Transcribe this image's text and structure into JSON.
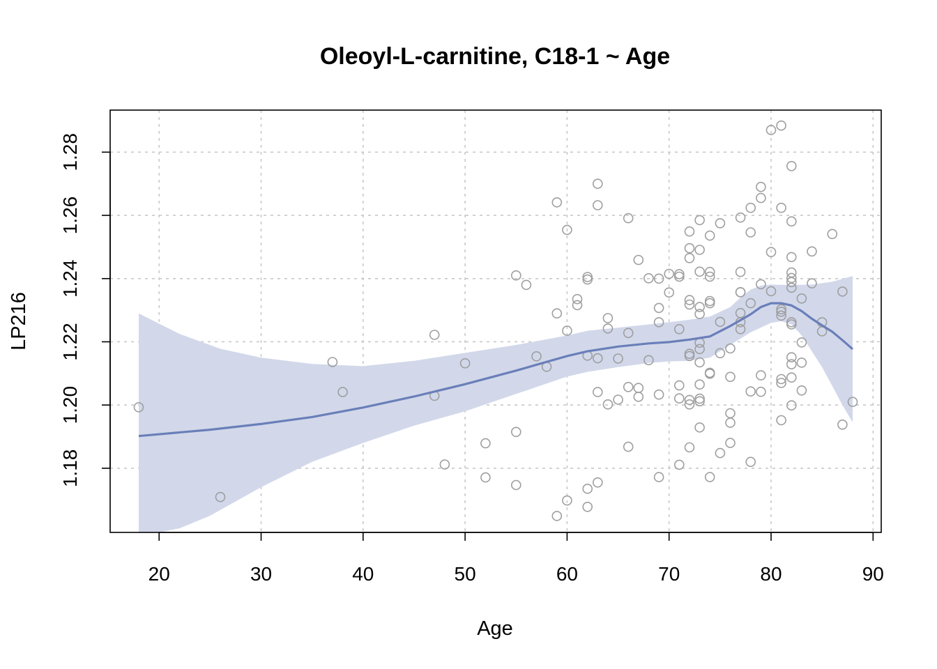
{
  "chart_data": {
    "type": "scatter",
    "title": "Oleoyl-L-carnitine, C18-1 ~ Age",
    "xlabel": "Age",
    "ylabel": "LP216",
    "xlim": [
      15.2,
      90.8
    ],
    "ylim": [
      1.1597,
      1.2933
    ],
    "xticks": [
      20,
      30,
      40,
      50,
      60,
      70,
      80,
      90
    ],
    "yticks": [
      1.18,
      1.2,
      1.22,
      1.24,
      1.26,
      1.28
    ],
    "ytick_labels": [
      "1.18",
      "1.20",
      "1.22",
      "1.24",
      "1.26",
      "1.28"
    ],
    "grid": true,
    "colors": {
      "points": "#9e9e9e",
      "smooth_line": "#6a7fb9",
      "confidence_band": "#d2d8ea",
      "grid": "#c8c8c8"
    },
    "points": [
      [
        18,
        1.1993
      ],
      [
        26,
        1.1709
      ],
      [
        37,
        1.2136
      ],
      [
        38,
        1.2041
      ],
      [
        47,
        1.2222
      ],
      [
        47,
        1.2029
      ],
      [
        48,
        1.1812
      ],
      [
        50,
        1.2132
      ],
      [
        52,
        1.1879
      ],
      [
        52,
        1.1771
      ],
      [
        55,
        1.241
      ],
      [
        55,
        1.1915
      ],
      [
        55,
        1.1747
      ],
      [
        56,
        1.238
      ],
      [
        57,
        1.2154
      ],
      [
        58,
        1.2121
      ],
      [
        59,
        1.2641
      ],
      [
        59,
        1.229
      ],
      [
        59,
        1.1649
      ],
      [
        60,
        1.2554
      ],
      [
        60,
        1.2235
      ],
      [
        60,
        1.1698
      ],
      [
        61,
        1.2335
      ],
      [
        61,
        1.2316
      ],
      [
        62,
        1.2405
      ],
      [
        62,
        1.2397
      ],
      [
        62,
        1.2156
      ],
      [
        62,
        1.1735
      ],
      [
        62,
        1.1678
      ],
      [
        63,
        1.27
      ],
      [
        63,
        1.2632
      ],
      [
        63,
        1.2148
      ],
      [
        63,
        1.2041
      ],
      [
        63,
        1.1755
      ],
      [
        64,
        1.2275
      ],
      [
        64,
        1.2242
      ],
      [
        64,
        1.2002
      ],
      [
        65,
        1.2147
      ],
      [
        65,
        1.2017
      ],
      [
        66,
        1.2591
      ],
      [
        66,
        1.2228
      ],
      [
        66,
        1.2057
      ],
      [
        66,
        1.1868
      ],
      [
        67,
        1.2459
      ],
      [
        67,
        1.2054
      ],
      [
        67,
        1.2026
      ],
      [
        68,
        1.2401
      ],
      [
        68,
        1.2142
      ],
      [
        69,
        1.24
      ],
      [
        69,
        1.2307
      ],
      [
        69,
        1.2262
      ],
      [
        69,
        1.2033
      ],
      [
        69,
        1.1772
      ],
      [
        70,
        1.2415
      ],
      [
        70,
        1.2356
      ],
      [
        71,
        1.2414
      ],
      [
        71,
        1.2406
      ],
      [
        71,
        1.224
      ],
      [
        71,
        1.2062
      ],
      [
        71,
        1.2021
      ],
      [
        71,
        1.1811
      ],
      [
        72,
        1.2549
      ],
      [
        72,
        1.2496
      ],
      [
        72,
        1.2465
      ],
      [
        72,
        1.2332
      ],
      [
        72,
        1.2318
      ],
      [
        72,
        1.2162
      ],
      [
        72,
        1.2155
      ],
      [
        72,
        1.2016
      ],
      [
        72,
        1.2002
      ],
      [
        72,
        1.1866
      ],
      [
        73,
        1.2585
      ],
      [
        73,
        1.2491
      ],
      [
        73,
        1.2422
      ],
      [
        73,
        1.231
      ],
      [
        73,
        1.2288
      ],
      [
        73,
        1.2197
      ],
      [
        73,
        1.2177
      ],
      [
        73,
        1.2135
      ],
      [
        73,
        1.2065
      ],
      [
        73,
        1.202
      ],
      [
        73,
        1.2012
      ],
      [
        73,
        1.1929
      ],
      [
        74,
        1.2536
      ],
      [
        74,
        1.2421
      ],
      [
        74,
        1.2406
      ],
      [
        74,
        1.2329
      ],
      [
        74,
        1.2322
      ],
      [
        74,
        1.2102
      ],
      [
        74,
        1.2099
      ],
      [
        74,
        1.1772
      ],
      [
        75,
        1.2575
      ],
      [
        75,
        1.2263
      ],
      [
        75,
        1.2164
      ],
      [
        75,
        1.1848
      ],
      [
        76,
        1.2179
      ],
      [
        76,
        1.2089
      ],
      [
        76,
        1.1974
      ],
      [
        76,
        1.1944
      ],
      [
        76,
        1.188
      ],
      [
        77,
        1.2593
      ],
      [
        77,
        1.2421
      ],
      [
        77,
        1.2357
      ],
      [
        77,
        1.2357
      ],
      [
        77,
        1.2291
      ],
      [
        77,
        1.2262
      ],
      [
        77,
        1.224
      ],
      [
        78,
        1.2624
      ],
      [
        78,
        1.2546
      ],
      [
        78,
        1.2322
      ],
      [
        78,
        1.2043
      ],
      [
        78,
        1.182
      ],
      [
        79,
        1.269
      ],
      [
        79,
        1.2655
      ],
      [
        79,
        1.2382
      ],
      [
        79,
        1.2094
      ],
      [
        79,
        1.2042
      ],
      [
        80,
        1.287
      ],
      [
        80,
        1.2484
      ],
      [
        80,
        1.236
      ],
      [
        81,
        1.2884
      ],
      [
        81,
        1.2624
      ],
      [
        81,
        1.2303
      ],
      [
        81,
        1.2295
      ],
      [
        81,
        1.2283
      ],
      [
        81,
        1.2082
      ],
      [
        81,
        1.207
      ],
      [
        81,
        1.1952
      ],
      [
        82,
        1.2756
      ],
      [
        82,
        1.2581
      ],
      [
        82,
        1.2468
      ],
      [
        82,
        1.2419
      ],
      [
        82,
        1.2402
      ],
      [
        82,
        1.2389
      ],
      [
        82,
        1.2371
      ],
      [
        82,
        1.2262
      ],
      [
        82,
        1.2255
      ],
      [
        82,
        1.2151
      ],
      [
        82,
        1.2129
      ],
      [
        82,
        1.2087
      ],
      [
        82,
        1.1999
      ],
      [
        83,
        1.2337
      ],
      [
        83,
        1.2198
      ],
      [
        83,
        1.2134
      ],
      [
        83,
        1.2046
      ],
      [
        84,
        1.2486
      ],
      [
        84,
        1.2385
      ],
      [
        85,
        1.2262
      ],
      [
        85,
        1.2233
      ],
      [
        86,
        1.2541
      ],
      [
        87,
        1.2359
      ],
      [
        87,
        1.1938
      ],
      [
        88,
        1.201
      ]
    ],
    "smooth_line": [
      [
        18,
        1.1902
      ],
      [
        25,
        1.1922
      ],
      [
        30,
        1.194
      ],
      [
        35,
        1.1962
      ],
      [
        40,
        1.1992
      ],
      [
        45,
        1.2027
      ],
      [
        50,
        1.2066
      ],
      [
        55,
        1.2109
      ],
      [
        60,
        1.2155
      ],
      [
        62,
        1.217
      ],
      [
        65,
        1.2185
      ],
      [
        68,
        1.2195
      ],
      [
        70,
        1.2199
      ],
      [
        72,
        1.2207
      ],
      [
        74,
        1.2217
      ],
      [
        76,
        1.225
      ],
      [
        78,
        1.2287
      ],
      [
        79,
        1.231
      ],
      [
        80,
        1.2322
      ],
      [
        81,
        1.2322
      ],
      [
        82,
        1.2315
      ],
      [
        83,
        1.2297
      ],
      [
        84,
        1.2273
      ],
      [
        85,
        1.2252
      ],
      [
        86,
        1.2232
      ],
      [
        87,
        1.2205
      ],
      [
        88,
        1.2177
      ]
    ],
    "band_upper": [
      [
        18,
        1.229
      ],
      [
        22,
        1.2225
      ],
      [
        26,
        1.2178
      ],
      [
        30,
        1.215
      ],
      [
        35,
        1.213
      ],
      [
        40,
        1.2123
      ],
      [
        45,
        1.214
      ],
      [
        50,
        1.2165
      ],
      [
        55,
        1.219
      ],
      [
        60,
        1.222
      ],
      [
        62,
        1.2235
      ],
      [
        65,
        1.2245
      ],
      [
        68,
        1.2255
      ],
      [
        70,
        1.2262
      ],
      [
        72,
        1.227
      ],
      [
        74,
        1.228
      ],
      [
        76,
        1.231
      ],
      [
        77,
        1.234
      ],
      [
        78,
        1.2365
      ],
      [
        79,
        1.2378
      ],
      [
        80,
        1.2381
      ],
      [
        81,
        1.238
      ],
      [
        82,
        1.238
      ],
      [
        84,
        1.2381
      ],
      [
        86,
        1.239
      ],
      [
        88,
        1.2408
      ]
    ],
    "band_lower": [
      [
        18,
        1.1597
      ],
      [
        20,
        1.1597
      ],
      [
        22,
        1.161
      ],
      [
        25,
        1.165
      ],
      [
        30,
        1.174
      ],
      [
        35,
        1.182
      ],
      [
        40,
        1.188
      ],
      [
        45,
        1.1935
      ],
      [
        50,
        1.198
      ],
      [
        55,
        1.2035
      ],
      [
        60,
        1.209
      ],
      [
        62,
        1.2105
      ],
      [
        65,
        1.212
      ],
      [
        68,
        1.2133
      ],
      [
        70,
        1.2138
      ],
      [
        72,
        1.214
      ],
      [
        74,
        1.215
      ],
      [
        76,
        1.219
      ],
      [
        78,
        1.223
      ],
      [
        79,
        1.2245
      ],
      [
        80,
        1.226
      ],
      [
        81,
        1.2265
      ],
      [
        82,
        1.2255
      ],
      [
        83,
        1.222
      ],
      [
        84,
        1.217
      ],
      [
        85,
        1.212
      ],
      [
        86,
        1.206
      ],
      [
        87,
        1.2
      ],
      [
        88,
        1.1945
      ]
    ]
  }
}
